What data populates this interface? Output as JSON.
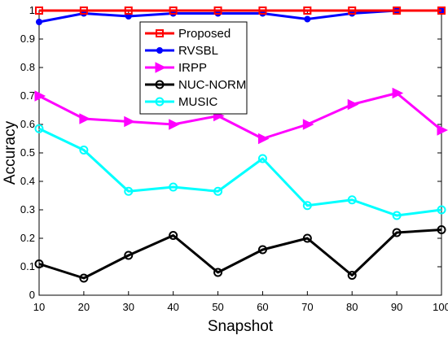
{
  "chart_data": {
    "type": "line",
    "title": "",
    "xlabel": "Snapshot",
    "ylabel": "Accuracy",
    "x": [
      10,
      20,
      30,
      40,
      50,
      60,
      70,
      80,
      90,
      100
    ],
    "xlim": [
      10,
      100
    ],
    "ylim": [
      0,
      1
    ],
    "xticks": [
      "10",
      "20",
      "30",
      "40",
      "50",
      "60",
      "70",
      "80",
      "90",
      "100"
    ],
    "yticks": [
      "0",
      "0.1",
      "0.2",
      "0.3",
      "0.4",
      "0.5",
      "0.6",
      "0.7",
      "0.8",
      "0.9",
      "1"
    ],
    "grid": false,
    "legend_position": "top-center",
    "series": [
      {
        "name": "Proposed",
        "color": "#ff0000",
        "marker": "square",
        "values": [
          1,
          1,
          1,
          1,
          1,
          1,
          1,
          1,
          1,
          1
        ]
      },
      {
        "name": "RVSBL",
        "color": "#0000ff",
        "marker": "dot",
        "values": [
          0.96,
          0.99,
          0.98,
          0.99,
          0.99,
          0.99,
          0.97,
          0.99,
          1,
          1
        ]
      },
      {
        "name": "IRPP",
        "color": "#ff00ff",
        "marker": "triangle-right",
        "values": [
          0.7,
          0.62,
          0.61,
          0.6,
          0.63,
          0.55,
          0.6,
          0.67,
          0.71,
          0.58
        ]
      },
      {
        "name": "NUC-NORM",
        "color": "#000000",
        "marker": "circle",
        "values": [
          0.11,
          0.06,
          0.14,
          0.21,
          0.08,
          0.16,
          0.2,
          0.07,
          0.22,
          0.23
        ]
      },
      {
        "name": "MUSIC",
        "color": "#00ffff",
        "marker": "circle",
        "values": [
          0.585,
          0.51,
          0.365,
          0.38,
          0.365,
          0.48,
          0.315,
          0.335,
          0.28,
          0.3
        ]
      }
    ]
  }
}
